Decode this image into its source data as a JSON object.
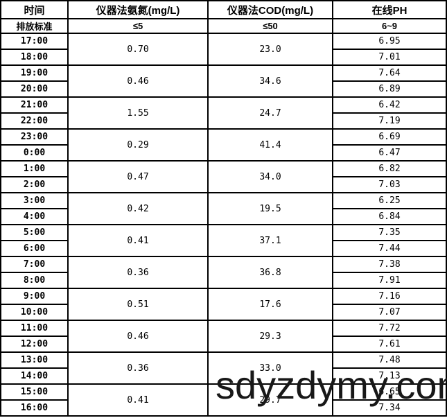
{
  "table": {
    "headers": {
      "time": "时间",
      "nh3": "仪器法氨氮(mg/L)",
      "cod": "仪器法COD(mg/L)",
      "ph": "在线PH"
    },
    "standards": {
      "label": "排放标准",
      "nh3": "≤5",
      "cod": "≤50",
      "ph": "6~9"
    },
    "groups": [
      {
        "time1": "17:00",
        "time2": "18:00",
        "nh3": "0.70",
        "cod": "23.0",
        "ph1": "6.95",
        "ph2": "7.01"
      },
      {
        "time1": "19:00",
        "time2": "20:00",
        "nh3": "0.46",
        "cod": "34.6",
        "ph1": "7.64",
        "ph2": "6.89"
      },
      {
        "time1": "21:00",
        "time2": "22:00",
        "nh3": "1.55",
        "cod": "24.7",
        "ph1": "6.42",
        "ph2": "7.19"
      },
      {
        "time1": "23:00",
        "time2": "0:00",
        "nh3": "0.29",
        "cod": "41.4",
        "ph1": "6.69",
        "ph2": "6.47"
      },
      {
        "time1": "1:00",
        "time2": "2:00",
        "nh3": "0.47",
        "cod": "34.0",
        "ph1": "6.82",
        "ph2": "7.03"
      },
      {
        "time1": "3:00",
        "time2": "4:00",
        "nh3": "0.42",
        "cod": "19.5",
        "ph1": "6.25",
        "ph2": "6.84"
      },
      {
        "time1": "5:00",
        "time2": "6:00",
        "nh3": "0.41",
        "cod": "37.1",
        "ph1": "7.35",
        "ph2": "7.44"
      },
      {
        "time1": "7:00",
        "time2": "8:00",
        "nh3": "0.36",
        "cod": "36.8",
        "ph1": "7.38",
        "ph2": "7.91"
      },
      {
        "time1": "9:00",
        "time2": "10:00",
        "nh3": "0.51",
        "cod": "17.6",
        "ph1": "7.16",
        "ph2": "7.07"
      },
      {
        "time1": "11:00",
        "time2": "12:00",
        "nh3": "0.46",
        "cod": "29.3",
        "ph1": "7.72",
        "ph2": "7.61"
      },
      {
        "time1": "13:00",
        "time2": "14:00",
        "nh3": "0.36",
        "cod": "33.0",
        "ph1": "7.48",
        "ph2": "7.13"
      },
      {
        "time1": "15:00",
        "time2": "16:00",
        "nh3": "0.41",
        "cod": "29.7",
        "ph1": "6.65",
        "ph2": "7.34"
      }
    ]
  },
  "watermark": {
    "text": "sdyzdymy.com",
    "color": "#181818"
  },
  "colors": {
    "border": "#000000",
    "background": "#ffffff",
    "text": "#000000"
  }
}
